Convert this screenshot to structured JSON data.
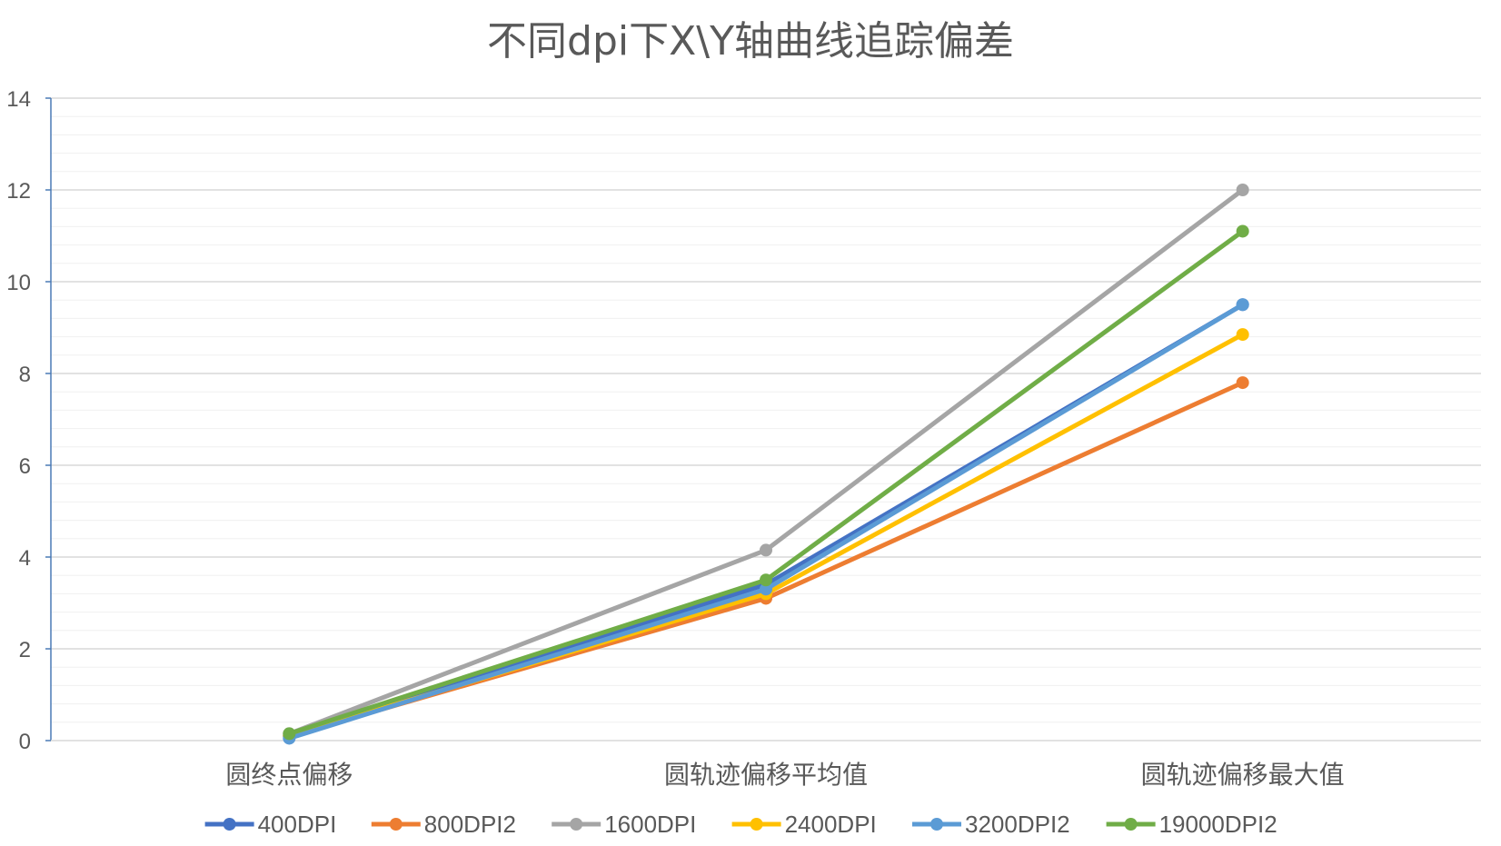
{
  "chart_data": {
    "type": "line",
    "title": "不同dpi下X\\Y轴曲线追踪偏差",
    "categories": [
      "圆终点偏移",
      "圆轨迹偏移平均值",
      "圆轨迹偏移最大值"
    ],
    "ylim": [
      0,
      14
    ],
    "yticks": [
      "0",
      "2",
      "4",
      "6",
      "8",
      "10",
      "12",
      "14"
    ],
    "grid": true,
    "legend": "bottom",
    "series": [
      {
        "name": "400DPI",
        "color": "#4472C4",
        "values": [
          0.1,
          3.4,
          9.5
        ]
      },
      {
        "name": "800DPI2",
        "color": "#ED7D31",
        "values": [
          0.1,
          3.1,
          7.8
        ]
      },
      {
        "name": "1600DPI",
        "color": "#A5A5A5",
        "values": [
          0.15,
          4.15,
          12.0
        ]
      },
      {
        "name": "2400DPI",
        "color": "#FFC000",
        "values": [
          0.1,
          3.2,
          8.85
        ]
      },
      {
        "name": "3200DPI2",
        "color": "#5B9BD5",
        "values": [
          0.05,
          3.3,
          9.5
        ]
      },
      {
        "name": "19000DPI2",
        "color": "#70AD47",
        "values": [
          0.15,
          3.5,
          11.1
        ]
      }
    ]
  }
}
